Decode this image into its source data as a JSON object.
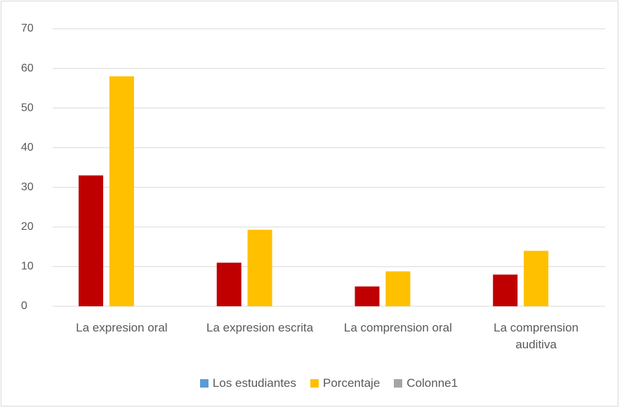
{
  "chart_data": {
    "type": "bar",
    "categories": [
      "La expresion oral",
      "La expresion escrita",
      "La comprension oral",
      "La comprension auditiva"
    ],
    "series": [
      {
        "name": "Los estudiantes",
        "color": "#c00000",
        "legend_color": "#5b9bd5",
        "values": [
          33,
          11,
          5,
          8
        ]
      },
      {
        "name": "Porcentaje",
        "color": "#ffc000",
        "legend_color": "#ffc000",
        "values": [
          58,
          19.3,
          8.8,
          14
        ]
      },
      {
        "name": "Colonne1",
        "color": "#a5a5a5",
        "legend_color": "#a5a5a5",
        "values": [
          null,
          null,
          null,
          null
        ]
      }
    ],
    "ylim": [
      0,
      70
    ],
    "yticks": [
      0,
      10,
      20,
      30,
      40,
      50,
      60,
      70
    ],
    "grid": true,
    "legend": "bottom"
  }
}
